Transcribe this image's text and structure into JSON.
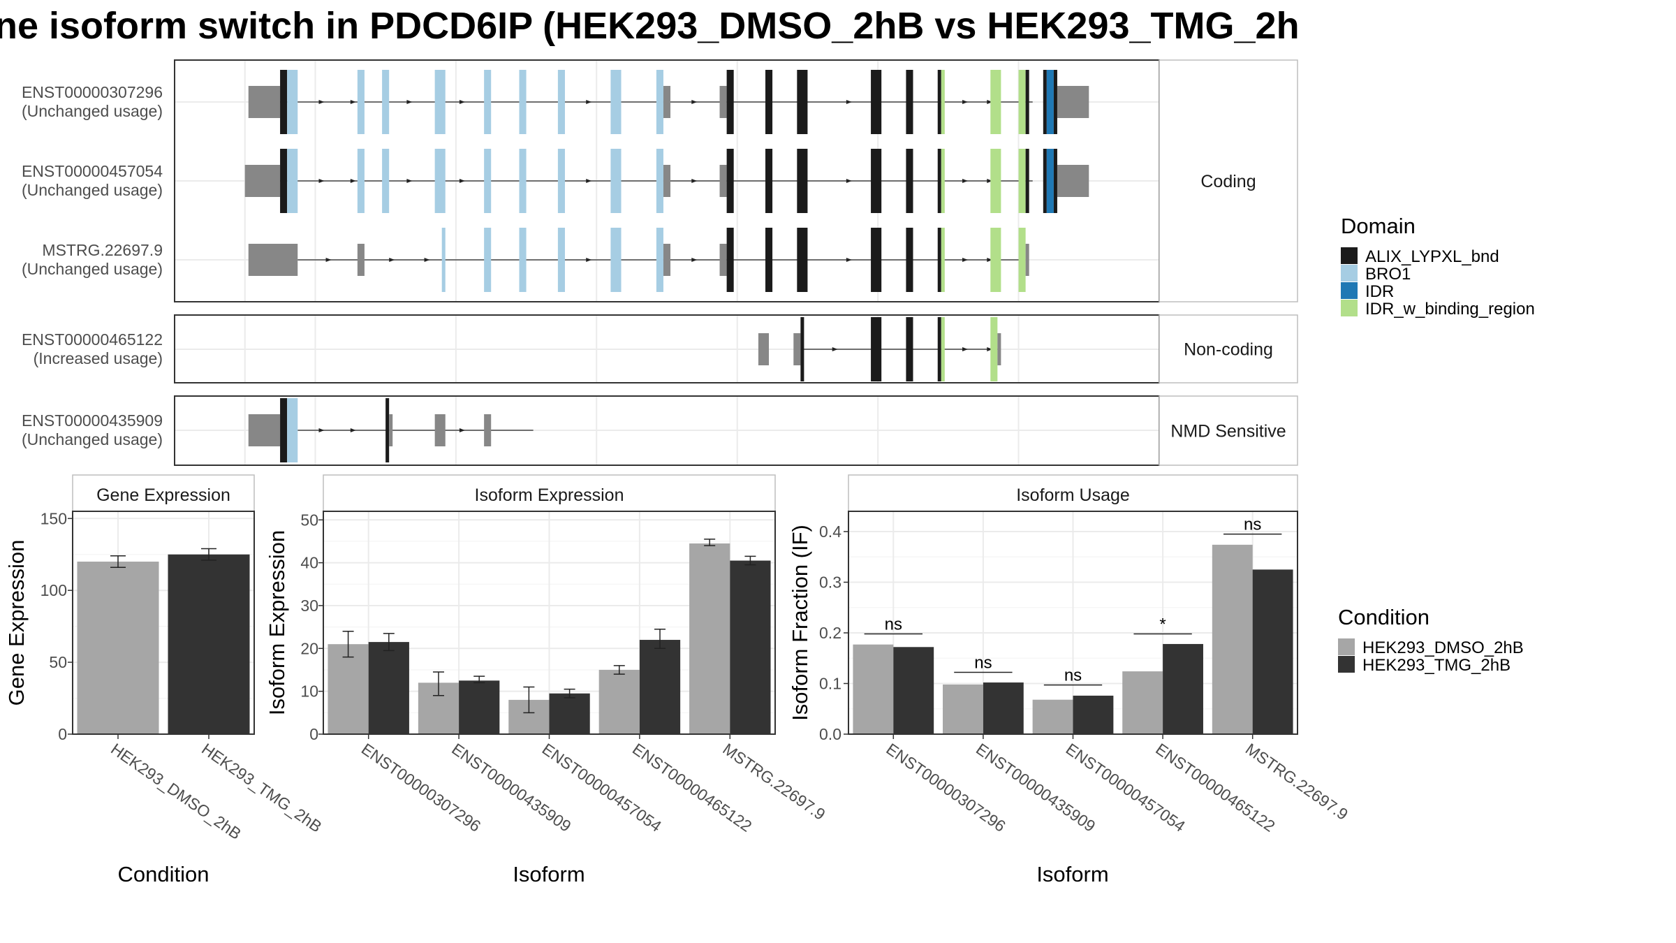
{
  "title": "ne isoform switch in PDCD6IP (HEK293_DMSO_2hB vs HEK293_TMG_2h",
  "colors": {
    "ALIX_LYPXL_bnd": "#1b1b1b",
    "BRO1": "#a6cde3",
    "IDR": "#1f78b4",
    "IDR_w_binding_region": "#b2df8a",
    "utr": "#878787",
    "dmso": "#a6a6a6",
    "tmg": "#333333"
  },
  "domain_legend": {
    "title": "Domain",
    "items": [
      {
        "label": "ALIX_LYPXL_bnd",
        "color": "#1b1b1b"
      },
      {
        "label": "BRO1",
        "color": "#a6cde3"
      },
      {
        "label": "IDR",
        "color": "#1f78b4"
      },
      {
        "label": "IDR_w_binding_region",
        "color": "#b2df8a"
      }
    ]
  },
  "condition_legend": {
    "title": "Condition",
    "items": [
      {
        "label": "HEK293_DMSO_2hB",
        "color": "#a6a6a6"
      },
      {
        "label": "HEK293_TMG_2hB",
        "color": "#333333"
      }
    ]
  },
  "structure": {
    "groups": [
      {
        "label": "Coding",
        "isoforms": [
          {
            "name": "ENST00000307296",
            "usage": "(Unchanged usage)",
            "span": [
              15,
              122
            ],
            "exons": [
              [
                10.5,
                15,
                "utr"
              ],
              [
                15,
                16,
                "ALIX_LYPXL_bnd"
              ],
              [
                16,
                17.5,
                "BRO1"
              ],
              [
                26,
                27,
                "BRO1"
              ],
              [
                29.5,
                30.5,
                "BRO1"
              ],
              [
                37,
                38.5,
                "BRO1"
              ],
              [
                44,
                45,
                "BRO1"
              ],
              [
                49,
                50,
                "BRO1"
              ],
              [
                54.5,
                55.5,
                "BRO1"
              ],
              [
                62,
                63.5,
                "BRO1"
              ],
              [
                68.5,
                69.5,
                "BRO1"
              ],
              [
                69.5,
                70.5,
                "utr"
              ],
              [
                77.5,
                78.5,
                "utr"
              ],
              [
                78.5,
                79.5,
                "ALIX_LYPXL_bnd"
              ],
              [
                84,
                85,
                "ALIX_LYPXL_bnd"
              ],
              [
                88.5,
                90,
                "ALIX_LYPXL_bnd"
              ],
              [
                99,
                100.5,
                "ALIX_LYPXL_bnd"
              ],
              [
                104,
                105,
                "ALIX_LYPXL_bnd"
              ],
              [
                108.5,
                109,
                "ALIX_LYPXL_bnd"
              ],
              [
                109,
                109.5,
                "IDR_w_binding_region"
              ],
              [
                116,
                117.5,
                "IDR_w_binding_region"
              ],
              [
                120,
                121,
                "IDR_w_binding_region"
              ],
              [
                121,
                121.5,
                "ALIX_LYPXL_bnd"
              ],
              [
                123.5,
                124,
                "ALIX_LYPXL_bnd"
              ],
              [
                124,
                125,
                "IDR"
              ],
              [
                125,
                125.5,
                "ALIX_LYPXL_bnd"
              ],
              [
                125.5,
                130,
                "utr"
              ]
            ],
            "arrows": [
              21,
              25.5,
              33.5,
              41,
              59,
              74,
              96,
              112.5,
              116
            ]
          },
          {
            "name": "ENST00000457054",
            "usage": "(Unchanged usage)",
            "span": [
              15,
              122
            ],
            "exons": [
              [
                10,
                15,
                "utr"
              ],
              [
                15,
                16,
                "ALIX_LYPXL_bnd"
              ],
              [
                16,
                17.5,
                "BRO1"
              ],
              [
                26,
                27,
                "BRO1"
              ],
              [
                29.5,
                30.5,
                "BRO1"
              ],
              [
                37,
                38.5,
                "BRO1"
              ],
              [
                44,
                45,
                "BRO1"
              ],
              [
                49,
                50,
                "BRO1"
              ],
              [
                54.5,
                55.5,
                "BRO1"
              ],
              [
                62,
                63.5,
                "BRO1"
              ],
              [
                68.5,
                69.5,
                "BRO1"
              ],
              [
                69.5,
                70.5,
                "utr"
              ],
              [
                77.5,
                78.5,
                "utr"
              ],
              [
                78.5,
                79.5,
                "ALIX_LYPXL_bnd"
              ],
              [
                84,
                85,
                "ALIX_LYPXL_bnd"
              ],
              [
                88.5,
                90,
                "ALIX_LYPXL_bnd"
              ],
              [
                99,
                100.5,
                "ALIX_LYPXL_bnd"
              ],
              [
                104,
                105,
                "ALIX_LYPXL_bnd"
              ],
              [
                108.5,
                109,
                "ALIX_LYPXL_bnd"
              ],
              [
                109,
                109.5,
                "IDR_w_binding_region"
              ],
              [
                116,
                117.5,
                "IDR_w_binding_region"
              ],
              [
                120,
                121,
                "IDR_w_binding_region"
              ],
              [
                121,
                121.5,
                "ALIX_LYPXL_bnd"
              ],
              [
                123.5,
                124,
                "ALIX_LYPXL_bnd"
              ],
              [
                124,
                125,
                "IDR"
              ],
              [
                125,
                125.5,
                "ALIX_LYPXL_bnd"
              ],
              [
                125.5,
                130,
                "utr"
              ]
            ],
            "arrows": [
              21,
              25.5,
              33.5,
              41,
              59,
              74,
              96,
              112.5,
              116
            ]
          },
          {
            "name": "MSTRG.22697.9",
            "usage": "(Unchanged usage)",
            "span": [
              17.5,
              121
            ],
            "exons": [
              [
                10.5,
                17.5,
                "utr"
              ],
              [
                26,
                27,
                "utr"
              ],
              [
                38,
                38.5,
                "BRO1"
              ],
              [
                44,
                45,
                "BRO1"
              ],
              [
                49,
                50,
                "BRO1"
              ],
              [
                54.5,
                55.5,
                "BRO1"
              ],
              [
                62,
                63.5,
                "BRO1"
              ],
              [
                68.5,
                69.5,
                "BRO1"
              ],
              [
                69.5,
                70.5,
                "utr"
              ],
              [
                77.5,
                78.5,
                "utr"
              ],
              [
                78.5,
                79.5,
                "ALIX_LYPXL_bnd"
              ],
              [
                84,
                85,
                "ALIX_LYPXL_bnd"
              ],
              [
                88.5,
                90,
                "ALIX_LYPXL_bnd"
              ],
              [
                99,
                100.5,
                "ALIX_LYPXL_bnd"
              ],
              [
                104,
                105,
                "ALIX_LYPXL_bnd"
              ],
              [
                108.5,
                109,
                "ALIX_LYPXL_bnd"
              ],
              [
                109,
                109.5,
                "IDR_w_binding_region"
              ],
              [
                116,
                117.5,
                "IDR_w_binding_region"
              ],
              [
                120,
                121,
                "IDR_w_binding_region"
              ],
              [
                121,
                121.5,
                "utr"
              ]
            ],
            "arrows": [
              22,
              31,
              36,
              59,
              74,
              96,
              112.5,
              116
            ]
          }
        ]
      },
      {
        "label": "Non-coding",
        "isoforms": [
          {
            "name": "ENST00000465122",
            "usage": "(Increased usage)",
            "span": [
              89,
              117
            ],
            "exons": [
              [
                83,
                84.5,
                "utr"
              ],
              [
                88,
                89,
                "utr"
              ],
              [
                89,
                89.5,
                "ALIX_LYPXL_bnd"
              ],
              [
                99,
                100.5,
                "ALIX_LYPXL_bnd"
              ],
              [
                104,
                105,
                "ALIX_LYPXL_bnd"
              ],
              [
                108.5,
                109,
                "ALIX_LYPXL_bnd"
              ],
              [
                109,
                109.5,
                "IDR_w_binding_region"
              ],
              [
                116,
                117,
                "IDR_w_binding_region"
              ],
              [
                117,
                117.5,
                "utr"
              ]
            ],
            "arrows": [
              94,
              112.5,
              116
            ]
          }
        ]
      },
      {
        "label": "NMD Sensitive",
        "isoforms": [
          {
            "name": "ENST00000435909",
            "usage": "(Unchanged usage)",
            "span": [
              17.5,
              51
            ],
            "exons": [
              [
                10.5,
                15,
                "utr"
              ],
              [
                15,
                16,
                "ALIX_LYPXL_bnd"
              ],
              [
                16,
                17.5,
                "BRO1"
              ],
              [
                30,
                30.5,
                "ALIX_LYPXL_bnd"
              ],
              [
                30.5,
                31,
                "utr"
              ],
              [
                37,
                38.5,
                "utr"
              ],
              [
                44,
                45,
                "utr"
              ]
            ],
            "arrows": [
              21,
              25.5,
              41
            ]
          }
        ]
      }
    ]
  },
  "chart_data": [
    {
      "type": "bar",
      "title": "Gene Expression",
      "xlabel": "Condition",
      "ylabel": "Gene Expression",
      "ylim": [
        0,
        155
      ],
      "yticks": [
        0,
        50,
        100,
        150
      ],
      "categories": [
        "HEK293_DMSO_2hB",
        "HEK293_TMG_2hB"
      ],
      "values": [
        120,
        125
      ],
      "errors": [
        [
          116,
          124
        ],
        [
          121,
          129
        ]
      ]
    },
    {
      "type": "bar",
      "title": "Isoform Expression",
      "xlabel": "Isoform",
      "ylabel": "Isoform Expression",
      "ylim": [
        0,
        52
      ],
      "yticks": [
        0,
        10,
        20,
        30,
        40,
        50
      ],
      "categories": [
        "ENST00000307296",
        "ENST00000435909",
        "ENST00000457054",
        "ENST00000465122",
        "MSTRG.22697.9"
      ],
      "series": [
        {
          "condition": "HEK293_DMSO_2hB",
          "values": [
            21,
            12,
            8,
            15,
            44.5
          ],
          "errors": [
            [
              18,
              24
            ],
            [
              9,
              14.5
            ],
            [
              5,
              11
            ],
            [
              14,
              16
            ],
            [
              44,
              45.5
            ]
          ]
        },
        {
          "condition": "HEK293_TMG_2hB",
          "values": [
            21.5,
            12.5,
            9.5,
            22,
            40.5
          ],
          "errors": [
            [
              19.5,
              23.5
            ],
            [
              12,
              13.5
            ],
            [
              8.5,
              10.5
            ],
            [
              20,
              24.5
            ],
            [
              39.5,
              41.5
            ]
          ]
        }
      ]
    },
    {
      "type": "bar",
      "title": "Isoform Usage",
      "xlabel": "Isoform",
      "ylabel": "Isoform Fraction (IF)",
      "ylim": [
        0,
        0.44
      ],
      "yticks": [
        0.0,
        0.1,
        0.2,
        0.3,
        0.4
      ],
      "ytick_labels": [
        "0.0",
        "0.1",
        "0.2",
        "0.3",
        "0.4"
      ],
      "categories": [
        "ENST00000307296",
        "ENST00000435909",
        "ENST00000457054",
        "ENST00000465122",
        "MSTRG.22697.9"
      ],
      "series": [
        {
          "condition": "HEK293_DMSO_2hB",
          "values": [
            0.177,
            0.098,
            0.068,
            0.124,
            0.374
          ]
        },
        {
          "condition": "HEK293_TMG_2hB",
          "values": [
            0.172,
            0.102,
            0.076,
            0.178,
            0.325
          ]
        }
      ],
      "significance": [
        "ns",
        "ns",
        "ns",
        "*",
        "ns"
      ],
      "significance_y": [
        0.198,
        0.122,
        0.097,
        0.198,
        0.395
      ]
    }
  ]
}
